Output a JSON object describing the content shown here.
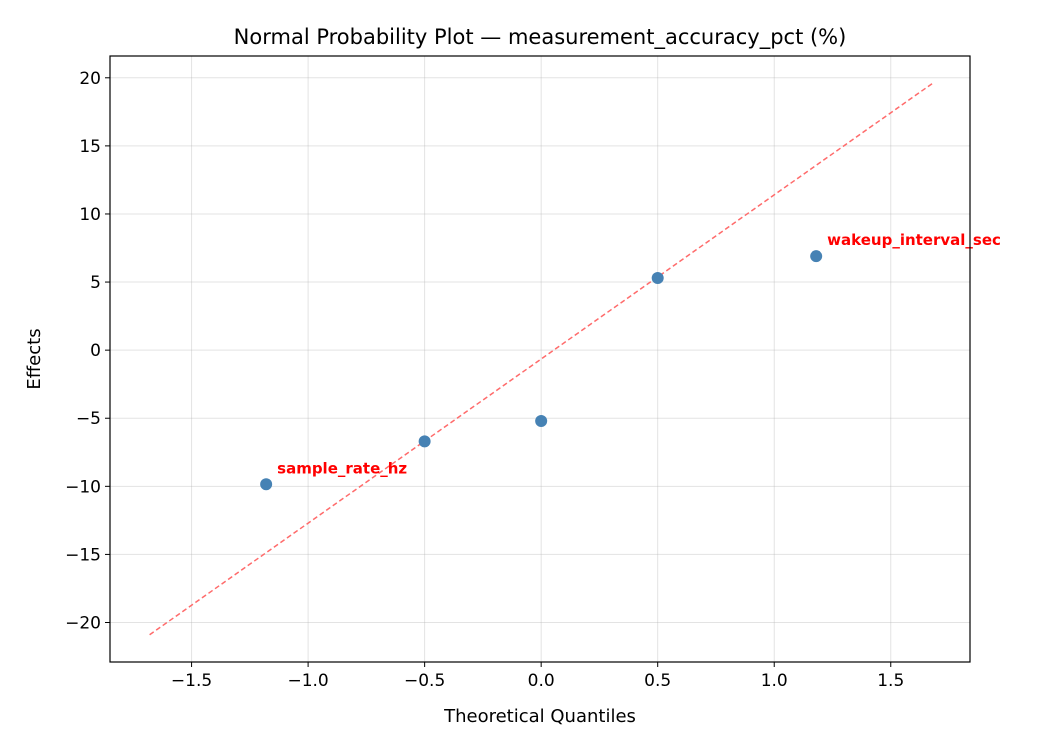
{
  "chart_data": {
    "type": "scatter",
    "title": "Normal Probability Plot — measurement_accuracy_pct (%)",
    "xlabel": "Theoretical Quantiles",
    "ylabel": "Effects",
    "xlim": [
      -1.85,
      1.84
    ],
    "ylim": [
      -22.9,
      21.6
    ],
    "xticks": [
      -1.5,
      -1.0,
      -0.5,
      0.0,
      0.5,
      1.0,
      1.5
    ],
    "xtick_labels": [
      "−1.5",
      "−1.0",
      "−0.5",
      "0.0",
      "0.5",
      "1.0",
      "1.5"
    ],
    "yticks": [
      -20,
      -15,
      -10,
      -5,
      0,
      5,
      10,
      15,
      20
    ],
    "ytick_labels": [
      "−20",
      "−15",
      "−10",
      "−5",
      "0",
      "5",
      "10",
      "15",
      "20"
    ],
    "grid": true,
    "points": [
      {
        "x": -1.18,
        "y": -9.85,
        "label": "sample_rate_hz"
      },
      {
        "x": -0.5,
        "y": -6.7,
        "label": ""
      },
      {
        "x": 0.0,
        "y": -5.2,
        "label": ""
      },
      {
        "x": 0.5,
        "y": 5.3,
        "label": ""
      },
      {
        "x": 1.18,
        "y": 6.9,
        "label": "wakeup_interval_sec"
      }
    ],
    "reference_line": {
      "x": [
        -1.68,
        1.68
      ],
      "y": [
        -20.9,
        19.6
      ]
    },
    "colors": {
      "points": "#4682b4",
      "line": "#ff6b6b",
      "labels": "#ff0000"
    }
  }
}
